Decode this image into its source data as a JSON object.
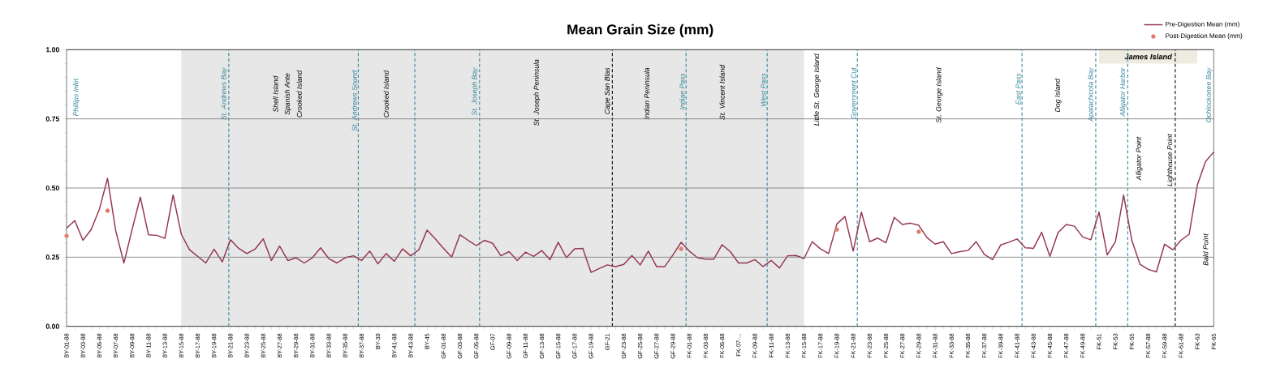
{
  "chart_data": {
    "type": "line",
    "title": "Mean Grain Size (mm)",
    "categories": [
      "BY-01-88",
      null,
      "BY-03-88",
      null,
      "BY-05-88",
      null,
      "BY-07-88",
      null,
      "BY-09-88",
      null,
      "BY-11-88",
      null,
      "BY-13-88",
      null,
      "BY-15-88",
      null,
      "BY-17-88",
      null,
      "BY-19-88",
      null,
      "BY-21-88",
      null,
      "BY-23-88",
      null,
      "BY-25-88",
      null,
      "BY-27-88",
      null,
      "BY-29-88",
      null,
      "BY-31-88",
      null,
      "BY-33-88",
      null,
      "BY-35-88",
      null,
      "BY-37-88",
      null,
      "BY-39",
      null,
      "BY-41-88",
      null,
      "BY-43-88",
      null,
      "BY-45",
      null,
      "GF-01-88",
      null,
      "GF-03-88",
      null,
      "GF-05-88",
      null,
      "GF-07",
      null,
      "GF-09-88",
      null,
      "GF-11-88",
      null,
      "GF-13-88",
      null,
      "GF-15-88",
      null,
      "GF-17-88",
      null,
      "GF-19-88",
      null,
      "GF-21",
      null,
      "GF-23-88",
      null,
      "GF-25-88",
      null,
      "GF-27-88",
      null,
      "GF-29-88",
      null,
      "FK-01-88",
      null,
      "FK-03-88",
      null,
      "FK-05-88",
      null,
      "FK-07-...",
      null,
      "FK-09-88",
      null,
      "FK-11-88",
      null,
      "FK-13-88",
      null,
      "FK-15-88",
      null,
      "FK-17-88",
      null,
      "FK-19-88",
      null,
      "FK-21-88",
      null,
      "FK-23-88",
      null,
      "FK-25-88",
      null,
      "FK-27-88",
      null,
      "FK-29-88",
      null,
      "FK-31-88",
      null,
      "FK-33-88",
      null,
      "FK-35-88",
      null,
      "FK-37-88",
      null,
      "FK-39-88",
      null,
      "FK-41-88",
      null,
      "FK-43-88",
      null,
      "FK-45-88",
      null,
      "FK-47-88",
      null,
      "FK-49-88",
      null,
      "FK-51",
      null,
      "FK-53",
      null,
      "FK-55",
      null,
      "FK-57-88",
      null,
      "FK-59-88",
      null,
      "FK-61-88",
      null,
      "FK-63",
      null,
      "FK-65"
    ],
    "series": [
      {
        "name": "Pre-Digestion Mean (mm)",
        "color": "#953553",
        "values": [
          0.355,
          0.382,
          0.311,
          0.35,
          0.423,
          0.535,
          0.345,
          0.229,
          0.35,
          0.467,
          0.331,
          0.329,
          0.318,
          0.475,
          0.333,
          0.277,
          0.253,
          0.229,
          0.279,
          0.233,
          0.313,
          0.282,
          0.263,
          0.279,
          0.316,
          0.238,
          0.29,
          0.238,
          0.248,
          0.229,
          0.248,
          0.284,
          0.245,
          0.229,
          0.248,
          0.255,
          0.238,
          0.272,
          0.226,
          0.263,
          0.235,
          0.28,
          0.255,
          0.277,
          0.348,
          0.316,
          0.282,
          0.25,
          0.331,
          0.311,
          0.292,
          0.311,
          0.3,
          0.255,
          0.27,
          0.238,
          0.268,
          0.253,
          0.274,
          0.241,
          0.304,
          0.248,
          0.28,
          0.282,
          0.195,
          0.209,
          0.222,
          0.216,
          0.224,
          0.256,
          0.222,
          0.272,
          0.216,
          0.216,
          0.258,
          0.304,
          0.272,
          0.248,
          0.243,
          0.243,
          0.295,
          0.27,
          0.229,
          0.229,
          0.241,
          0.216,
          0.238,
          0.211,
          0.255,
          0.256,
          0.245,
          0.306,
          0.28,
          0.263,
          0.37,
          0.397,
          0.272,
          0.413,
          0.306,
          0.319,
          0.302,
          0.394,
          0.368,
          0.373,
          0.365,
          0.321,
          0.297,
          0.306,
          0.263,
          0.27,
          0.274,
          0.306,
          0.26,
          0.241,
          0.294,
          0.304,
          0.316,
          0.284,
          0.282,
          0.34,
          0.253,
          0.339,
          0.368,
          0.362,
          0.323,
          0.313,
          0.413,
          0.258,
          0.306,
          0.475,
          0.311,
          0.224,
          0.206,
          0.197,
          0.297,
          0.277,
          0.311,
          0.333,
          0.511,
          0.596,
          0.63
        ]
      },
      {
        "name": "Post-Digestion Mean (mm)",
        "type": "scatter",
        "color": "#e07b6a",
        "values": [
          0.327,
          null,
          null,
          null,
          null,
          0.418,
          null,
          null,
          null,
          null,
          null,
          null,
          null,
          null,
          null,
          null,
          null,
          null,
          null,
          null,
          null,
          null,
          null,
          null,
          null,
          null,
          null,
          null,
          null,
          null,
          null,
          null,
          null,
          null,
          null,
          null,
          null,
          null,
          null,
          null,
          null,
          null,
          null,
          null,
          null,
          null,
          null,
          null,
          null,
          null,
          null,
          null,
          null,
          null,
          null,
          null,
          null,
          null,
          null,
          null,
          null,
          null,
          null,
          null,
          null,
          null,
          null,
          null,
          null,
          null,
          null,
          null,
          null,
          null,
          null,
          0.28,
          null,
          null,
          null,
          null,
          null,
          null,
          null,
          null,
          null,
          null,
          null,
          null,
          null,
          null,
          null,
          null,
          null,
          null,
          0.35,
          null,
          null,
          null,
          null,
          null,
          null,
          null,
          null,
          null,
          0.342,
          null,
          null,
          null,
          null,
          null,
          null,
          null,
          null,
          null,
          null,
          null,
          null,
          null,
          null,
          null,
          null,
          null,
          null,
          null,
          null,
          null,
          null,
          null,
          null,
          null,
          null,
          null,
          null,
          null,
          null,
          null,
          null,
          null,
          null,
          null,
          null
        ]
      }
    ],
    "ylim": [
      0,
      1
    ],
    "yticks": [
      {
        "value": 0,
        "label": "0.00"
      },
      {
        "value": 0.25,
        "label": "0.25"
      },
      {
        "value": 0.5,
        "label": "0.50"
      },
      {
        "value": 0.75,
        "label": "0.75"
      },
      {
        "value": 1,
        "label": "1.00"
      }
    ],
    "grid": "y",
    "legend": "top right",
    "bands": [
      {
        "axis": "x",
        "from": "BY-15-88",
        "to": "FK-15-88",
        "color": "#e7e7e7"
      },
      {
        "axis": "x",
        "from": "FK-51",
        "to": "FK-63",
        "label": "James Island",
        "color": "#eeece1"
      }
    ],
    "annotations": [
      "Phillips Inlet",
      "St. Andrews Bay",
      "Shell Island",
      "Spanish Ante",
      "Crooked Island",
      "St. Andrews Sound",
      "Crooked Island",
      "St. Joseph Bay",
      "St. Joseph Peninsula",
      "Cape San Blas",
      "Indian Peninsula",
      "Indian Pass",
      "St. Vincent Island",
      "West Pass",
      "Little St. George Island",
      "Government Cut",
      "St. George Island",
      "East Pass",
      "Dog Island",
      "Apalachicola Bay",
      "Alligator Harbor",
      "Alligator Point",
      "Lighthouse Point",
      "Ochlockonee Bay",
      "Bald Point"
    ]
  }
}
